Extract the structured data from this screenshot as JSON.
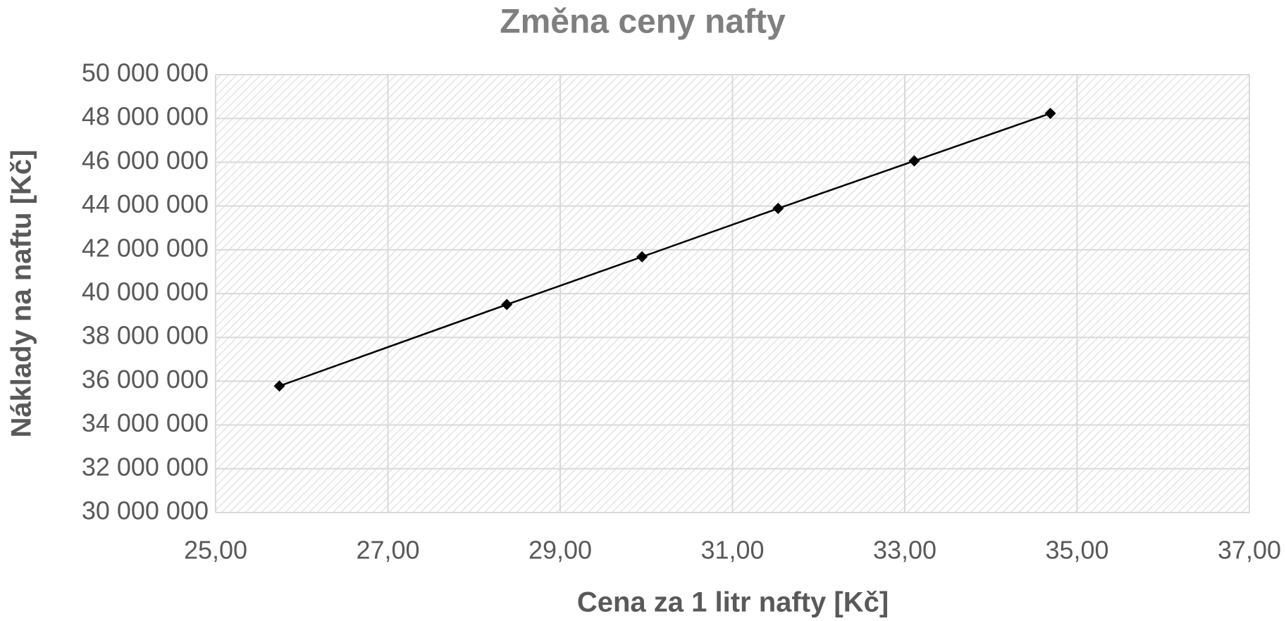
{
  "chart_data": {
    "type": "line",
    "title": "Změna ceny nafty",
    "x_label": "Cena za 1 litr nafty [Kč]",
    "y_label": "Náklady na naftu [Kč]",
    "x": [
      25.74,
      28.38,
      29.95,
      31.53,
      33.11,
      34.69
    ],
    "series": [
      {
        "name": "Náklady na naftu",
        "color": "#000000",
        "marker": "diamond",
        "values": [
          35780000,
          39500000,
          41680000,
          43890000,
          46060000,
          48230000
        ]
      }
    ],
    "xlim": [
      25,
      37
    ],
    "xticks": [
      {
        "value": 25,
        "label": "25,00"
      },
      {
        "value": 27,
        "label": "27,00"
      },
      {
        "value": 29,
        "label": "29,00"
      },
      {
        "value": 31,
        "label": "31,00"
      },
      {
        "value": 33,
        "label": "33,00"
      },
      {
        "value": 35,
        "label": "35,00"
      },
      {
        "value": 37,
        "label": "37,00"
      }
    ],
    "ylim": [
      30000000,
      50000000
    ],
    "yticks": [
      {
        "value": 30000000,
        "label": "30 000 000"
      },
      {
        "value": 32000000,
        "label": "32 000 000"
      },
      {
        "value": 34000000,
        "label": "34 000 000"
      },
      {
        "value": 36000000,
        "label": "36 000 000"
      },
      {
        "value": 38000000,
        "label": "38 000 000"
      },
      {
        "value": 40000000,
        "label": "40 000 000"
      },
      {
        "value": 42000000,
        "label": "42 000 000"
      },
      {
        "value": 44000000,
        "label": "44 000 000"
      },
      {
        "value": 46000000,
        "label": "46 000 000"
      },
      {
        "value": 48000000,
        "label": "48 000 000"
      },
      {
        "value": 50000000,
        "label": "50 000 000"
      }
    ],
    "grid": true
  }
}
